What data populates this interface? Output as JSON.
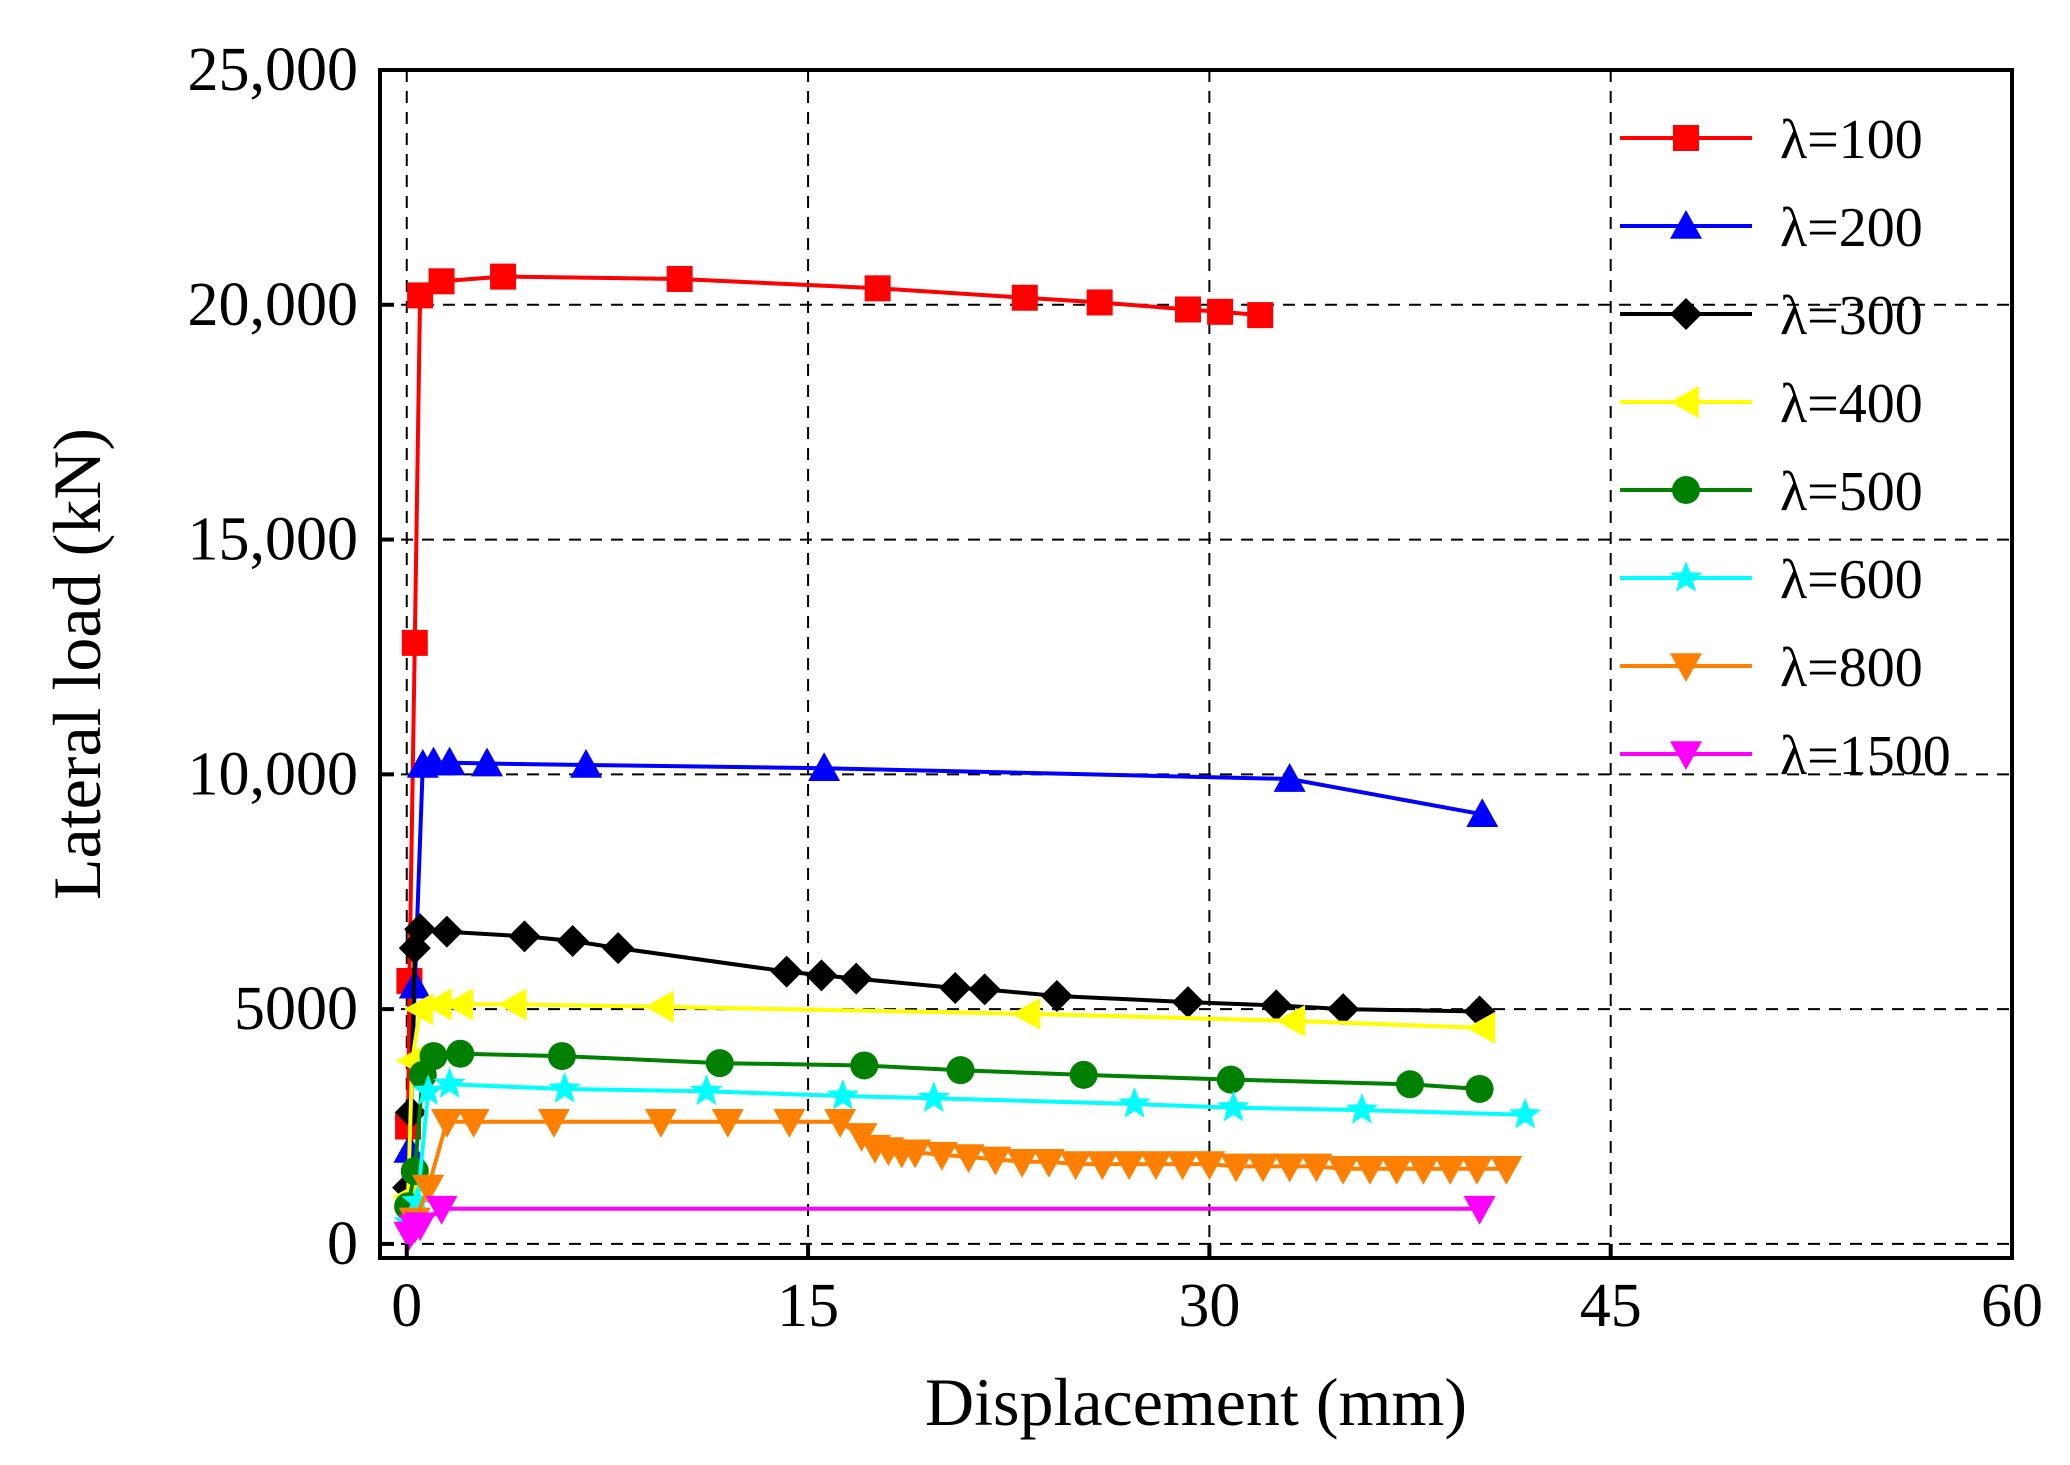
{
  "chart_data": {
    "type": "line",
    "title": "",
    "xlabel": "Displacement (mm)",
    "ylabel": "Lateral load (kN)",
    "xlim": [
      -1,
      60
    ],
    "ylim": [
      -300,
      25000
    ],
    "xticks": [
      0,
      15,
      30,
      45,
      60
    ],
    "xtick_labels": [
      "0",
      "15",
      "30",
      "45",
      "60"
    ],
    "yticks": [
      0,
      5000,
      10000,
      15000,
      20000,
      25000
    ],
    "ytick_labels": [
      "0",
      "5000",
      "10,000",
      "15,000",
      "20,000",
      "25,000"
    ],
    "grid": "dashed",
    "legend_position": "top-right",
    "series": [
      {
        "name": "λ=100",
        "color": "#ff0000",
        "marker": "square",
        "x": [
          0,
          0.05,
          0.1,
          0.3,
          0.5,
          1.3,
          3.6,
          10.2,
          17.6,
          23.1,
          25.9,
          29.2,
          30.4,
          31.9
        ],
        "y": [
          0,
          2500,
          5600,
          12800,
          20200,
          20500,
          20600,
          20550,
          20350,
          20150,
          20050,
          19900,
          19850,
          19780
        ]
      },
      {
        "name": "λ=200",
        "color": "#0000ff",
        "marker": "triangle-up",
        "x": [
          0,
          0.1,
          0.3,
          0.6,
          1.0,
          1.6,
          3.0,
          6.7,
          15.6,
          33.0,
          40.2
        ],
        "y": [
          0,
          2000,
          5500,
          10200,
          10250,
          10250,
          10230,
          10200,
          10130,
          9900,
          9150
        ]
      },
      {
        "name": "λ=300",
        "color": "#000000",
        "marker": "diamond",
        "x": [
          0,
          0.05,
          0.15,
          0.3,
          0.5,
          1.5,
          4.4,
          6.2,
          7.9,
          14.2,
          15.5,
          16.8,
          20.5,
          21.6,
          24.3,
          29.2,
          32.5,
          35.0,
          40.1
        ],
        "y": [
          0,
          1200,
          2800,
          6300,
          6700,
          6650,
          6550,
          6450,
          6300,
          5800,
          5720,
          5650,
          5450,
          5420,
          5280,
          5150,
          5080,
          5000,
          4950
        ]
      },
      {
        "name": "λ=400",
        "color": "#ffff00",
        "marker": "triangle-left",
        "x": [
          0,
          0.05,
          0.2,
          0.5,
          1.2,
          2.0,
          4.0,
          9.5,
          23.2,
          33.1,
          40.2
        ],
        "y": [
          0,
          1000,
          3900,
          5000,
          5100,
          5100,
          5100,
          5050,
          4900,
          4750,
          4600
        ]
      },
      {
        "name": "λ=500",
        "color": "#008000",
        "marker": "circle",
        "x": [
          0,
          0.05,
          0.3,
          0.6,
          1.0,
          2.0,
          5.8,
          11.7,
          17.1,
          20.7,
          25.3,
          30.8,
          37.5,
          40.1
        ],
        "y": [
          0,
          800,
          1550,
          3600,
          4000,
          4050,
          4000,
          3850,
          3800,
          3700,
          3600,
          3500,
          3400,
          3300
        ]
      },
      {
        "name": "λ=600",
        "color": "#00ffff",
        "marker": "star",
        "x": [
          0,
          0.1,
          0.4,
          0.8,
          1.6,
          5.9,
          11.2,
          16.3,
          19.7,
          27.2,
          30.9,
          35.7,
          41.8
        ],
        "y": [
          0,
          450,
          900,
          3250,
          3400,
          3300,
          3250,
          3150,
          3100,
          2980,
          2900,
          2850,
          2750
        ]
      },
      {
        "name": "λ=800",
        "color": "#ff8000",
        "marker": "triangle-down",
        "x": [
          0,
          0.3,
          0.8,
          1.5,
          2.5,
          5.5,
          9.5,
          12.0,
          14.3,
          16.2,
          17.0,
          17.5,
          18.0,
          18.5,
          19.0,
          20.0,
          21.0,
          22.0,
          23.0,
          24.0,
          25.0,
          26.0,
          27.0,
          28.0,
          29.0,
          30.0,
          31.0,
          32.0,
          33.0,
          34.0,
          35.0,
          36.0,
          37.0,
          38.0,
          39.0,
          40.0,
          41.1
        ],
        "y": [
          0,
          500,
          1200,
          2600,
          2600,
          2600,
          2600,
          2600,
          2600,
          2600,
          2300,
          2050,
          2000,
          1950,
          1950,
          1900,
          1850,
          1800,
          1750,
          1750,
          1700,
          1700,
          1700,
          1700,
          1700,
          1700,
          1650,
          1650,
          1650,
          1650,
          1600,
          1600,
          1600,
          1600,
          1600,
          1600,
          1600
        ]
      },
      {
        "name": "λ=1500",
        "color": "#ff00ff",
        "marker": "triangle-down",
        "x": [
          0,
          0.1,
          0.3,
          0.5,
          1.3,
          40.1
        ],
        "y": [
          0,
          200,
          350,
          400,
          750,
          750
        ]
      }
    ]
  }
}
